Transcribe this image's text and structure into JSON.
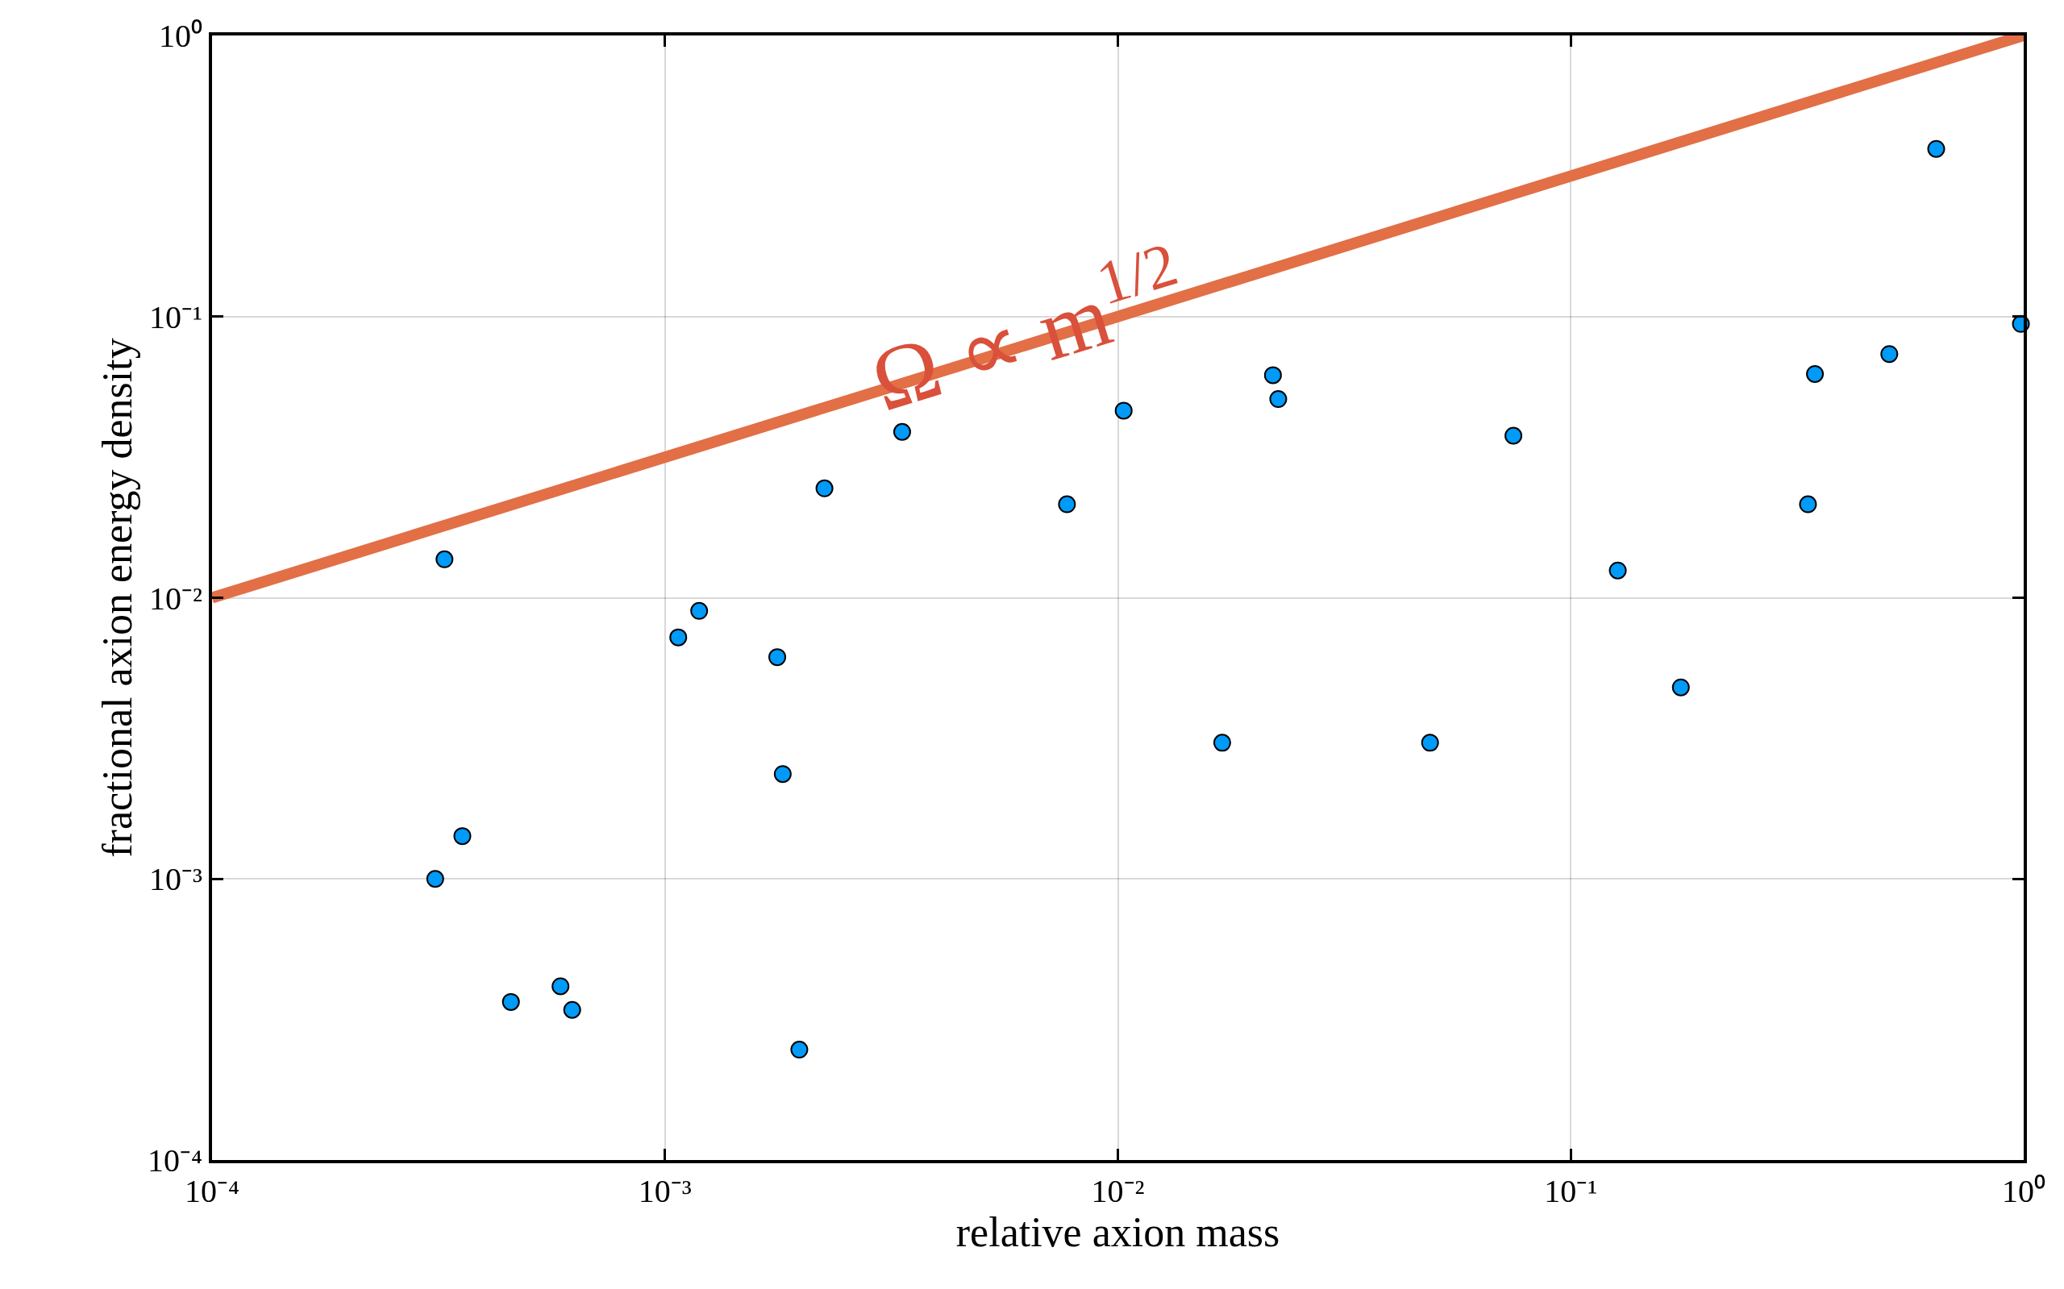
{
  "chart_data": {
    "type": "scatter",
    "xlabel": "relative axion mass",
    "ylabel": "fractional axion energy density",
    "log": "xy",
    "grid": true,
    "legend": false,
    "xlim": [
      0.0001,
      1
    ],
    "ylim": [
      0.0001,
      1
    ],
    "xticks": [
      {
        "value": 0.0001,
        "label": "10⁻⁴"
      },
      {
        "value": 0.001,
        "label": "10⁻³"
      },
      {
        "value": 0.01,
        "label": "10⁻²"
      },
      {
        "value": 0.1,
        "label": "10⁻¹"
      },
      {
        "value": 1,
        "label": "10⁰"
      }
    ],
    "yticks": [
      {
        "value": 0.0001,
        "label": "10⁻⁴"
      },
      {
        "value": 0.001,
        "label": "10⁻³"
      },
      {
        "value": 0.01,
        "label": "10⁻²"
      },
      {
        "value": 0.1,
        "label": "10⁻¹"
      },
      {
        "value": 1,
        "label": "10⁰"
      }
    ],
    "series": [
      {
        "marker": "circle",
        "color": "#009af9",
        "x": [
          0.000326,
          0.000311,
          0.000357,
          0.000457,
          0.000588,
          0.000624,
          0.00107,
          0.00119,
          0.00177,
          0.00182,
          0.00198,
          0.00225,
          0.00334,
          0.00772,
          0.0103,
          0.017,
          0.022,
          0.0226,
          0.0489,
          0.0747,
          0.127,
          0.175,
          0.334,
          0.346,
          0.505,
          0.641,
          0.986
        ],
        "values": [
          0.0137,
          0.001,
          0.00142,
          0.000365,
          0.000415,
          0.000342,
          0.00723,
          0.00898,
          0.00615,
          0.00236,
          0.000247,
          0.0245,
          0.0389,
          0.0215,
          0.0463,
          0.00305,
          0.0619,
          0.0509,
          0.00305,
          0.0377,
          0.0125,
          0.0048,
          0.0215,
          0.0625,
          0.0736,
          0.395,
          0.0942
        ]
      },
      {
        "type": "line",
        "color": "#e26f46",
        "line_style": "solid",
        "x": [
          0.0001,
          1
        ],
        "values": [
          0.01,
          1
        ]
      }
    ],
    "annotations": [
      "Ω ∝ m$^{1/2}$"
    ]
  }
}
